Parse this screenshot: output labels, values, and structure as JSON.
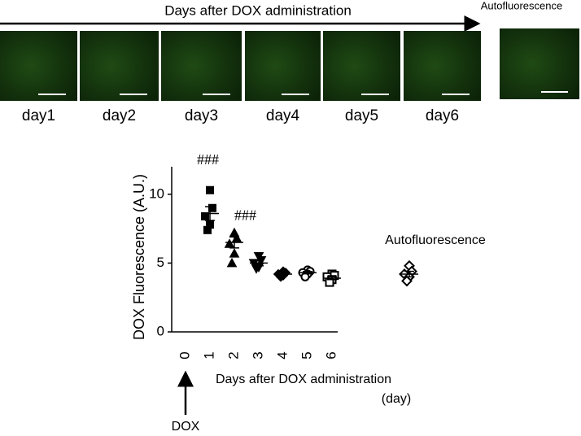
{
  "panel": {
    "title": "Days after DOX administration",
    "autofluorescence_label": "Autofluorescence",
    "labels": [
      "day1",
      "day2",
      "day3",
      "day4",
      "day5",
      "day6"
    ]
  },
  "chart_data": {
    "type": "scatter",
    "ylabel": "DOX Fluorescence (A.U.)",
    "xlabel": "Days after DOX administration",
    "xunit": "(day)",
    "arrow_label": "DOX",
    "categories": [
      "0",
      "1",
      "2",
      "3",
      "4",
      "5",
      "6",
      "Autofluorescence"
    ],
    "points": [
      null,
      [
        10.3,
        9.0,
        8.4,
        7.8,
        7.4
      ],
      [
        7.2,
        6.8,
        6.4,
        5.7,
        5.0
      ],
      [
        5.5,
        5.2,
        5.0,
        4.7,
        4.6
      ],
      [
        4.4,
        4.3,
        4.2,
        4.1,
        4.0
      ],
      [
        4.5,
        4.4,
        4.3,
        4.2,
        4.0
      ],
      [
        4.2,
        4.1,
        4.0,
        3.8,
        3.6
      ],
      [
        4.8,
        4.4,
        4.2,
        4.0,
        3.7
      ]
    ],
    "mean": [
      null,
      8.6,
      6.5,
      5.0,
      4.2,
      4.3,
      3.9,
      4.2
    ],
    "sem": [
      null,
      0.5,
      0.4,
      0.2,
      0.08,
      0.08,
      0.1,
      0.2
    ],
    "markers": [
      null,
      "square",
      "triangle",
      "triangle-down",
      "diamond",
      "circle-open",
      "square-open",
      "diamond-open"
    ],
    "significance": [
      null,
      "###",
      "###",
      null,
      null,
      null,
      null,
      null
    ],
    "color": "#000000",
    "ylim": [
      0,
      12
    ],
    "yticks": [
      0,
      5,
      10
    ]
  }
}
